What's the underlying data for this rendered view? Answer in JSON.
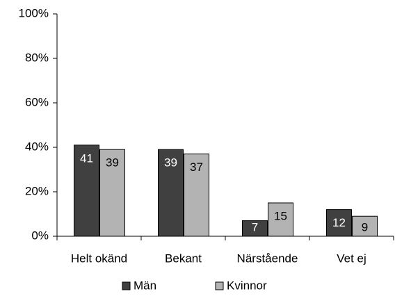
{
  "chart_data": {
    "type": "bar",
    "categories": [
      "Helt okänd",
      "Bekant",
      "Närstående",
      "Vet ej"
    ],
    "series": [
      {
        "name": "Män",
        "color": "#404040",
        "values": [
          41,
          39,
          7,
          12
        ]
      },
      {
        "name": "Kvinnor",
        "color": "#b3b3b3",
        "values": [
          39,
          37,
          15,
          9
        ]
      }
    ],
    "ylim": [
      0,
      100
    ],
    "yticks": [
      {
        "value": 0,
        "label": "0%"
      },
      {
        "value": 20,
        "label": "20%"
      },
      {
        "value": 40,
        "label": "40%"
      },
      {
        "value": 60,
        "label": "60%"
      },
      {
        "value": 80,
        "label": "80%"
      },
      {
        "value": 100,
        "label": "100%"
      }
    ],
    "grid": false,
    "legend": "bottom"
  }
}
